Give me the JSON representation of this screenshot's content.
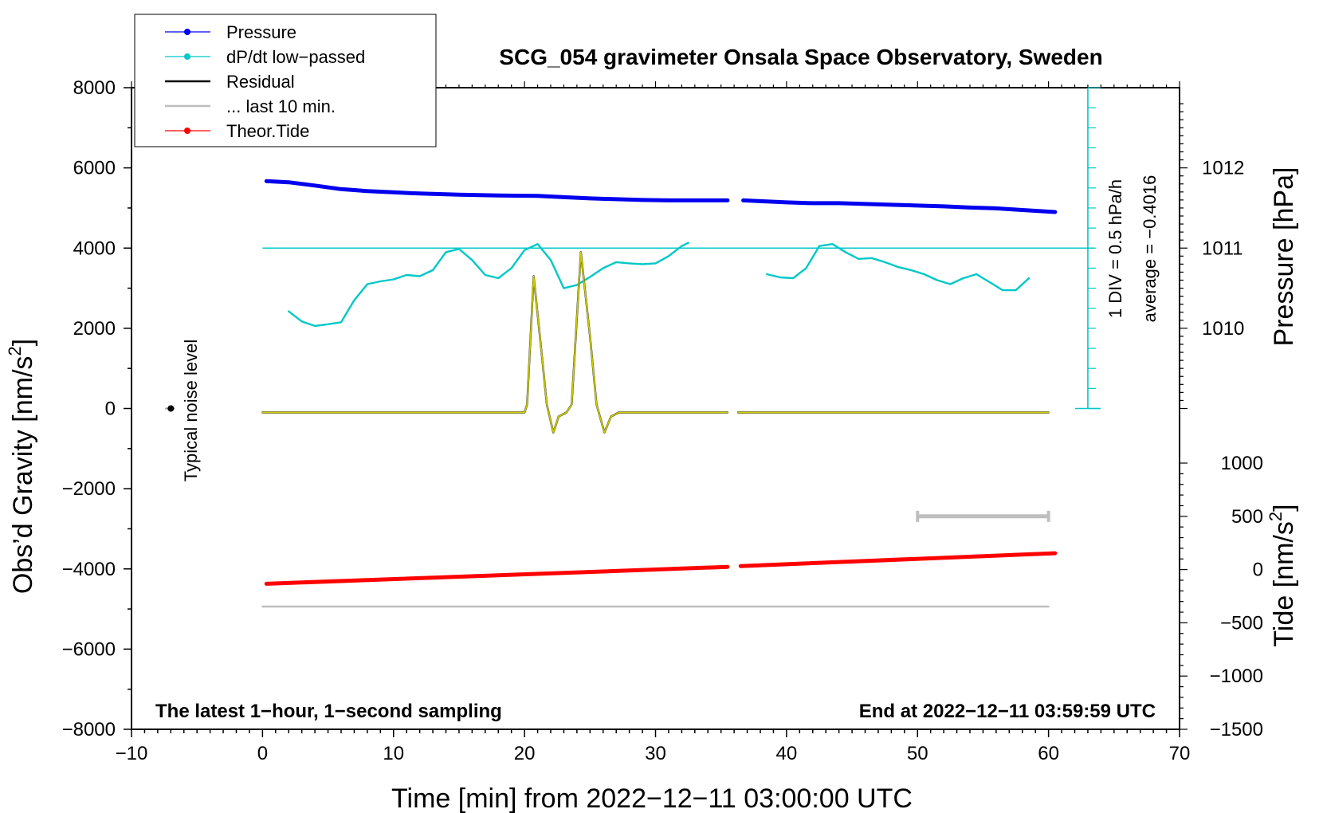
{
  "chart_data": {
    "type": "line",
    "title": "SCG_054 gravimeter Onsala Space Observatory, Sweden",
    "xlabel": "Time [min] from 2022−12−11 03:00:00 UTC",
    "ylabel": "Obs’d Gravity [nm/s²]",
    "ylabel_main": "Obs’d Gravity [nm/s",
    "ylabel_sup": "2",
    "ylabel_close": "]",
    "y2label": "Pressure [hPa]",
    "y3label_main": "Tide [nm/s",
    "y3label_sup": "2",
    "y3label_close": "]",
    "xlim": [
      -10,
      70
    ],
    "ylim": [
      -8000,
      8000
    ],
    "x_ticks": [
      -10,
      0,
      10,
      20,
      30,
      40,
      50,
      60,
      70
    ],
    "x_tick_labels": [
      "−10",
      "0",
      "10",
      "20",
      "30",
      "40",
      "50",
      "60",
      "70"
    ],
    "y_ticks": [
      -8000,
      -6000,
      -4000,
      -2000,
      0,
      2000,
      4000,
      6000,
      8000
    ],
    "y_tick_labels": [
      "−8000",
      "−6000",
      "−4000",
      "−2000",
      "0",
      "2000",
      "4000",
      "6000",
      "8000"
    ],
    "pressure_axis": {
      "ticks": [
        1010,
        1011,
        1012
      ],
      "tick_labels": [
        "1010",
        "1011",
        "1012"
      ],
      "gravity_equiv_per_hPa": 2000,
      "reference_hPa": 1011
    },
    "tide_axis": {
      "ticks": [
        1000,
        500,
        0,
        -500,
        -1000,
        -1500
      ],
      "tick_labels": [
        "1000",
        "500",
        "0",
        "−500",
        "−1000",
        "−1500"
      ],
      "range": [
        -1500,
        1000
      ]
    },
    "notes": {
      "left": "The latest 1−hour, 1−second sampling",
      "right": "End at 2022−12−11 03:59:59 UTC",
      "noise_label": "Typical noise level",
      "div_label": "1 DIV = 0.5 hPa/h",
      "avg_label": "average = −0.4016"
    },
    "legend": [
      {
        "name": "Pressure",
        "color": "#0000ee",
        "marker": true
      },
      {
        "name": "dP/dt low−passed",
        "color": "#00c8c8",
        "marker": true
      },
      {
        "name": "Residual",
        "color": "#000000",
        "marker": false
      },
      {
        "name": "... last 10 min.",
        "color": "#bebebe",
        "marker": false
      },
      {
        "name": "Theor.Tide",
        "color": "#ff0000",
        "marker": true
      }
    ],
    "dpdt_scale": {
      "x": 63,
      "y_bottom": 0,
      "y_top": 8000,
      "divisions": 16,
      "reference_y": 4000
    },
    "noise_level": {
      "x": -7,
      "y": 0
    },
    "last10_bar": {
      "x_start": 50,
      "x_end": 60,
      "tide_value": 500
    },
    "series": [
      {
        "name": "Pressure",
        "color": "#0000ee",
        "segments": [
          [
            [
              0.3,
              5670
            ],
            [
              2,
              5640
            ],
            [
              4,
              5560
            ],
            [
              6,
              5470
            ],
            [
              8,
              5420
            ],
            [
              10,
              5390
            ],
            [
              12,
              5360
            ],
            [
              15,
              5330
            ],
            [
              18,
              5310
            ],
            [
              21,
              5300
            ],
            [
              23,
              5270
            ],
            [
              25,
              5240
            ],
            [
              27,
              5220
            ],
            [
              29,
              5200
            ],
            [
              31,
              5190
            ],
            [
              33,
              5190
            ],
            [
              35.5,
              5190
            ]
          ],
          [
            [
              36.7,
              5190
            ],
            [
              38,
              5170
            ],
            [
              40,
              5140
            ],
            [
              42,
              5120
            ],
            [
              44,
              5120
            ],
            [
              46,
              5100
            ],
            [
              48,
              5080
            ],
            [
              50,
              5060
            ],
            [
              52,
              5040
            ],
            [
              54,
              5010
            ],
            [
              56,
              4990
            ],
            [
              58,
              4950
            ],
            [
              60.5,
              4900
            ]
          ]
        ]
      },
      {
        "name": "dP/dt low−passed",
        "color": "#00c8c8",
        "segments": [
          [
            [
              2,
              2420
            ],
            [
              3,
              2170
            ],
            [
              4,
              2060
            ],
            [
              5,
              2100
            ],
            [
              6,
              2150
            ],
            [
              7,
              2700
            ],
            [
              8,
              3100
            ],
            [
              9,
              3170
            ],
            [
              10,
              3220
            ],
            [
              11,
              3330
            ],
            [
              12,
              3300
            ],
            [
              13,
              3450
            ],
            [
              14,
              3900
            ],
            [
              15,
              3980
            ],
            [
              16,
              3700
            ],
            [
              17,
              3330
            ],
            [
              18,
              3250
            ],
            [
              19,
              3500
            ],
            [
              20,
              3950
            ],
            [
              21,
              4100
            ],
            [
              22,
              3700
            ],
            [
              23,
              3000
            ],
            [
              24,
              3080
            ],
            [
              25,
              3280
            ],
            [
              26,
              3500
            ],
            [
              27,
              3650
            ],
            [
              28,
              3620
            ],
            [
              29,
              3600
            ],
            [
              30,
              3620
            ],
            [
              31,
              3800
            ],
            [
              32,
              4050
            ],
            [
              32.5,
              4130
            ]
          ],
          [
            [
              38.5,
              3350
            ],
            [
              39.5,
              3270
            ],
            [
              40.5,
              3250
            ],
            [
              41.5,
              3500
            ],
            [
              42.5,
              4050
            ],
            [
              43.5,
              4100
            ],
            [
              44.5,
              3900
            ],
            [
              45.5,
              3730
            ],
            [
              46.5,
              3750
            ],
            [
              47.5,
              3650
            ],
            [
              48.5,
              3530
            ],
            [
              49.5,
              3450
            ],
            [
              50.5,
              3350
            ],
            [
              51.5,
              3200
            ],
            [
              52.5,
              3100
            ],
            [
              53.5,
              3250
            ],
            [
              54.5,
              3350
            ],
            [
              55.5,
              3150
            ],
            [
              56.5,
              2950
            ],
            [
              57.5,
              2950
            ],
            [
              58.5,
              3250
            ]
          ]
        ]
      },
      {
        "name": "Residual",
        "color": "#000000",
        "segments": [
          [
            [
              0,
              -100
            ],
            [
              20,
              -100
            ],
            [
              20.2,
              100
            ],
            [
              20.7,
              3300
            ],
            [
              21.3,
              1400
            ],
            [
              21.7,
              100
            ],
            [
              22.2,
              -600
            ],
            [
              22.6,
              -200
            ],
            [
              23.2,
              -100
            ],
            [
              23.6,
              100
            ],
            [
              24.3,
              3900
            ],
            [
              25,
              1800
            ],
            [
              25.5,
              100
            ],
            [
              26.1,
              -600
            ],
            [
              26.6,
              -200
            ],
            [
              27.2,
              -100
            ],
            [
              35.5,
              -100
            ]
          ],
          [
            [
              36.3,
              -100
            ],
            [
              60,
              -100
            ]
          ]
        ]
      },
      {
        "name": "Residual (overlay)",
        "color": "#cccc00",
        "segments": [
          [
            [
              0,
              -100
            ],
            [
              20,
              -100
            ],
            [
              20.2,
              100
            ],
            [
              20.7,
              3300
            ],
            [
              21.3,
              1400
            ],
            [
              21.7,
              100
            ],
            [
              22.2,
              -600
            ],
            [
              22.6,
              -200
            ],
            [
              23.2,
              -100
            ],
            [
              23.6,
              100
            ],
            [
              24.3,
              3900
            ],
            [
              25,
              1800
            ],
            [
              25.5,
              100
            ],
            [
              26.1,
              -600
            ],
            [
              26.6,
              -200
            ],
            [
              27.2,
              -100
            ],
            [
              35.5,
              -100
            ]
          ],
          [
            [
              36.3,
              -100
            ],
            [
              60,
              -100
            ]
          ]
        ]
      },
      {
        "name": "Theor.Tide",
        "color": "#ff0000",
        "segments": [
          [
            [
              0.3,
              -4370
            ],
            [
              35.5,
              -3950
            ]
          ],
          [
            [
              36.5,
              -3930
            ],
            [
              60.5,
              -3610
            ]
          ]
        ]
      },
      {
        "name": "Residual (tide-axis, last 10 min. band)",
        "color": "#bebebe",
        "segments": [
          [
            [
              0,
              -4940
            ],
            [
              60,
              -4940
            ]
          ]
        ]
      }
    ]
  }
}
